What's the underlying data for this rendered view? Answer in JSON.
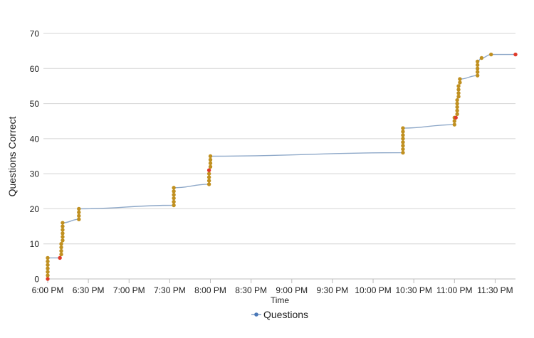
{
  "chart_data": {
    "type": "line",
    "ylabel": "Questions Correct",
    "xlabel": "Time",
    "ylim": [
      0,
      70
    ],
    "yticks": [
      0,
      10,
      20,
      30,
      40,
      50,
      60,
      70
    ],
    "xlim": [
      "6:00 PM",
      "11:45 PM"
    ],
    "xticks": [
      "6:00 PM",
      "6:30 PM",
      "7:00 PM",
      "7:30 PM",
      "8:00 PM",
      "8:30 PM",
      "9:00 PM",
      "9:30 PM",
      "10:00 PM",
      "10:30 PM",
      "11:00 PM",
      "11:30 PM"
    ],
    "grid": true,
    "legend_position": "bottom",
    "series": [
      {
        "name": "Questions",
        "color": "#8fa9c9",
        "marker_color": "#c09020",
        "incorrect_marker_color": "#e03a2a",
        "points": [
          {
            "x": "6:00 PM",
            "y": 0,
            "incorrect": true
          },
          {
            "x": "6:00 PM",
            "y": 1
          },
          {
            "x": "6:00 PM",
            "y": 2
          },
          {
            "x": "6:00 PM",
            "y": 3
          },
          {
            "x": "6:00 PM",
            "y": 4
          },
          {
            "x": "6:00 PM",
            "y": 5
          },
          {
            "x": "6:00 PM",
            "y": 6
          },
          {
            "x": "6:09 PM",
            "y": 6,
            "incorrect": true
          },
          {
            "x": "6:10 PM",
            "y": 7
          },
          {
            "x": "6:10 PM",
            "y": 8
          },
          {
            "x": "6:10 PM",
            "y": 9
          },
          {
            "x": "6:10 PM",
            "y": 10
          },
          {
            "x": "6:11 PM",
            "y": 11
          },
          {
            "x": "6:11 PM",
            "y": 12
          },
          {
            "x": "6:11 PM",
            "y": 13
          },
          {
            "x": "6:11 PM",
            "y": 14
          },
          {
            "x": "6:11 PM",
            "y": 15
          },
          {
            "x": "6:11 PM",
            "y": 16
          },
          {
            "x": "6:23 PM",
            "y": 17
          },
          {
            "x": "6:23 PM",
            "y": 18
          },
          {
            "x": "6:23 PM",
            "y": 19
          },
          {
            "x": "6:23 PM",
            "y": 20
          },
          {
            "x": "7:33 PM",
            "y": 21
          },
          {
            "x": "7:33 PM",
            "y": 22
          },
          {
            "x": "7:33 PM",
            "y": 23
          },
          {
            "x": "7:33 PM",
            "y": 24
          },
          {
            "x": "7:33 PM",
            "y": 25
          },
          {
            "x": "7:33 PM",
            "y": 26
          },
          {
            "x": "7:59 PM",
            "y": 27
          },
          {
            "x": "7:59 PM",
            "y": 28
          },
          {
            "x": "7:59 PM",
            "y": 29
          },
          {
            "x": "7:59 PM",
            "y": 30
          },
          {
            "x": "7:59 PM",
            "y": 31,
            "incorrect": true
          },
          {
            "x": "8:00 PM",
            "y": 32
          },
          {
            "x": "8:00 PM",
            "y": 33
          },
          {
            "x": "8:00 PM",
            "y": 34
          },
          {
            "x": "8:00 PM",
            "y": 35
          },
          {
            "x": "10:22 PM",
            "y": 36
          },
          {
            "x": "10:22 PM",
            "y": 37
          },
          {
            "x": "10:22 PM",
            "y": 38
          },
          {
            "x": "10:22 PM",
            "y": 39
          },
          {
            "x": "10:22 PM",
            "y": 40
          },
          {
            "x": "10:22 PM",
            "y": 41
          },
          {
            "x": "10:22 PM",
            "y": 42
          },
          {
            "x": "10:22 PM",
            "y": 43
          },
          {
            "x": "11:00 PM",
            "y": 44
          },
          {
            "x": "11:00 PM",
            "y": 45
          },
          {
            "x": "11:00 PM",
            "y": 46
          },
          {
            "x": "11:01 PM",
            "y": 46,
            "incorrect": true
          },
          {
            "x": "11:02 PM",
            "y": 47
          },
          {
            "x": "11:02 PM",
            "y": 48
          },
          {
            "x": "11:02 PM",
            "y": 49
          },
          {
            "x": "11:02 PM",
            "y": 50
          },
          {
            "x": "11:02 PM",
            "y": 51
          },
          {
            "x": "11:03 PM",
            "y": 52
          },
          {
            "x": "11:03 PM",
            "y": 53
          },
          {
            "x": "11:03 PM",
            "y": 54
          },
          {
            "x": "11:03 PM",
            "y": 55
          },
          {
            "x": "11:04 PM",
            "y": 56
          },
          {
            "x": "11:04 PM",
            "y": 57
          },
          {
            "x": "11:17 PM",
            "y": 58
          },
          {
            "x": "11:17 PM",
            "y": 59
          },
          {
            "x": "11:17 PM",
            "y": 60
          },
          {
            "x": "11:17 PM",
            "y": 61
          },
          {
            "x": "11:17 PM",
            "y": 62
          },
          {
            "x": "11:20 PM",
            "y": 63
          },
          {
            "x": "11:27 PM",
            "y": 64
          },
          {
            "x": "11:45 PM",
            "y": 64,
            "incorrect": true
          }
        ]
      }
    ]
  }
}
